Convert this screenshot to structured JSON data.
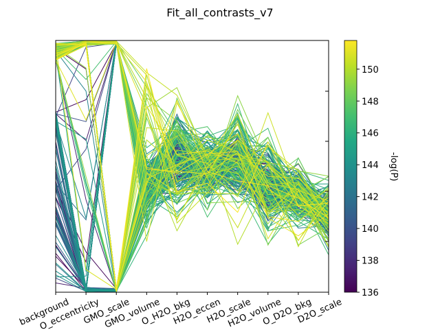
{
  "chart_data": {
    "type": "parallel-coordinates",
    "title": "Fit_all_contrasts_v7",
    "axes": [
      "background",
      "O_eccentricity",
      "GMO_scale",
      "GMO_volume",
      "O_H2O_bkg",
      "H2O_eccen",
      "H2O_scale",
      "H2O_volume",
      "O_D2O_bkg",
      "D2O_scale"
    ],
    "tick_labels": [
      "background",
      "O_eccentricity",
      "GMO_scale",
      "GMO_volume",
      "O_H2O_bkg",
      "H2O_eccen",
      "H2O_scale",
      "H2O_volume",
      "O_D2O_bkg",
      "D2O_scale"
    ],
    "normalized_range": [
      0,
      1
    ],
    "color_axis": {
      "label": "-log(P)",
      "colormap": "viridis",
      "range": [
        136,
        151.8
      ],
      "ticks": [
        136,
        138,
        140,
        142,
        144,
        146,
        148,
        150
      ]
    },
    "line_count": 260,
    "line_opacity": 1,
    "trace_profiles": {
      "background": "bimodal: most traces near 0.92-0.99, lower-cost traces fan from 0.72 down to 0.02",
      "O_eccentricity": "strongly concentrated near 0.0 and 1.0",
      "GMO_scale": "all traces near 1.0 or 0.0, crossing at mid-height",
      "GMO_volume": "dense band 0.30-0.55 with high-score traces spread higher",
      "O_H2O_bkg": "spread 0.25-0.75, outliers reaching 0.0 and 1.0",
      "H2O_eccen": "dense band 0.35-0.60",
      "H2O_scale": "spread 0.20-0.80",
      "H2O_volume": "dense band 0.25-0.60",
      "O_D2O_bkg": "dense band 0.30-0.50 with wide outliers",
      "D2O_scale": "dense band 0.25-0.40"
    }
  }
}
